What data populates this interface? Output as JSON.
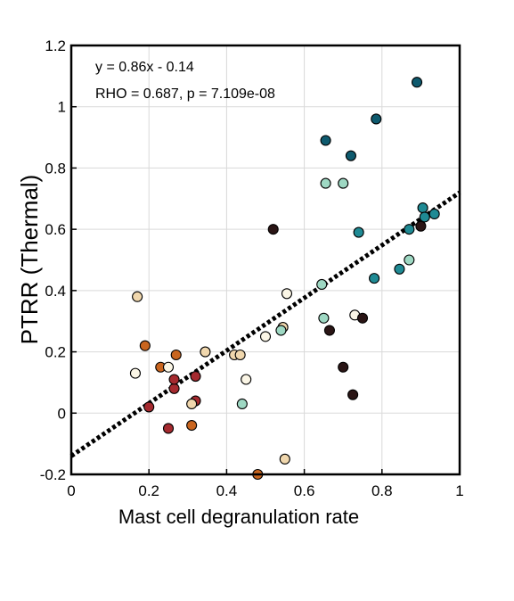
{
  "chart_data": {
    "type": "scatter",
    "title": "",
    "xlabel": "Mast cell degranulation rate",
    "ylabel": "PTRR (Thermal)",
    "xlim": [
      0,
      1
    ],
    "ylim": [
      -0.2,
      1.2
    ],
    "x_ticks": [
      "0",
      "0.2",
      "0.4",
      "0.6",
      "0.8",
      "1"
    ],
    "y_ticks": [
      "-0.2",
      "0",
      "0.2",
      "0.4",
      "0.6",
      "0.8",
      "1",
      "1.2"
    ],
    "grid": true,
    "annotations": [
      "y = 0.86x - 0.14",
      "RHO = 0.687, p = 7.109e-08"
    ],
    "fit_line": {
      "slope": 0.86,
      "intercept": -0.14,
      "style": "dotted"
    },
    "colors": {
      "red": "#a52a2f",
      "orange": "#c9651f",
      "tan": "#f0d7ad",
      "cream": "#fbf6e6",
      "mint": "#9ed8c3",
      "teal": "#1f8a94",
      "darkteal": "#0e5a6e",
      "black": "#2a1515"
    },
    "points": [
      {
        "x": 0.2,
        "y": 0.02,
        "c": "red"
      },
      {
        "x": 0.25,
        "y": -0.05,
        "c": "red"
      },
      {
        "x": 0.265,
        "y": 0.08,
        "c": "red"
      },
      {
        "x": 0.265,
        "y": 0.11,
        "c": "red"
      },
      {
        "x": 0.32,
        "y": 0.04,
        "c": "red"
      },
      {
        "x": 0.32,
        "y": 0.12,
        "c": "red"
      },
      {
        "x": 0.19,
        "y": 0.22,
        "c": "orange"
      },
      {
        "x": 0.23,
        "y": 0.15,
        "c": "orange"
      },
      {
        "x": 0.27,
        "y": 0.19,
        "c": "orange"
      },
      {
        "x": 0.31,
        "y": -0.04,
        "c": "orange"
      },
      {
        "x": 0.48,
        "y": -0.2,
        "c": "orange"
      },
      {
        "x": 0.17,
        "y": 0.38,
        "c": "tan"
      },
      {
        "x": 0.345,
        "y": 0.2,
        "c": "tan"
      },
      {
        "x": 0.42,
        "y": 0.19,
        "c": "tan"
      },
      {
        "x": 0.435,
        "y": 0.19,
        "c": "tan"
      },
      {
        "x": 0.31,
        "y": 0.03,
        "c": "tan"
      },
      {
        "x": 0.545,
        "y": 0.28,
        "c": "tan"
      },
      {
        "x": 0.55,
        "y": -0.15,
        "c": "tan"
      },
      {
        "x": 0.165,
        "y": 0.13,
        "c": "cream"
      },
      {
        "x": 0.25,
        "y": 0.15,
        "c": "cream"
      },
      {
        "x": 0.45,
        "y": 0.11,
        "c": "cream"
      },
      {
        "x": 0.5,
        "y": 0.25,
        "c": "cream"
      },
      {
        "x": 0.555,
        "y": 0.39,
        "c": "cream"
      },
      {
        "x": 0.73,
        "y": 0.32,
        "c": "cream"
      },
      {
        "x": 0.44,
        "y": 0.03,
        "c": "mint"
      },
      {
        "x": 0.54,
        "y": 0.27,
        "c": "mint"
      },
      {
        "x": 0.645,
        "y": 0.42,
        "c": "mint"
      },
      {
        "x": 0.65,
        "y": 0.31,
        "c": "mint"
      },
      {
        "x": 0.655,
        "y": 0.75,
        "c": "mint"
      },
      {
        "x": 0.7,
        "y": 0.75,
        "c": "mint"
      },
      {
        "x": 0.87,
        "y": 0.5,
        "c": "mint"
      },
      {
        "x": 0.74,
        "y": 0.59,
        "c": "teal"
      },
      {
        "x": 0.78,
        "y": 0.44,
        "c": "teal"
      },
      {
        "x": 0.845,
        "y": 0.47,
        "c": "teal"
      },
      {
        "x": 0.87,
        "y": 0.6,
        "c": "teal"
      },
      {
        "x": 0.905,
        "y": 0.67,
        "c": "teal"
      },
      {
        "x": 0.91,
        "y": 0.64,
        "c": "teal"
      },
      {
        "x": 0.935,
        "y": 0.65,
        "c": "teal"
      },
      {
        "x": 0.655,
        "y": 0.89,
        "c": "darkteal"
      },
      {
        "x": 0.72,
        "y": 0.84,
        "c": "darkteal"
      },
      {
        "x": 0.785,
        "y": 0.96,
        "c": "darkteal"
      },
      {
        "x": 0.89,
        "y": 1.08,
        "c": "darkteal"
      },
      {
        "x": 0.52,
        "y": 0.6,
        "c": "black"
      },
      {
        "x": 0.665,
        "y": 0.27,
        "c": "black"
      },
      {
        "x": 0.7,
        "y": 0.15,
        "c": "black"
      },
      {
        "x": 0.725,
        "y": 0.06,
        "c": "black"
      },
      {
        "x": 0.75,
        "y": 0.31,
        "c": "black"
      },
      {
        "x": 0.9,
        "y": 0.61,
        "c": "black"
      }
    ]
  }
}
